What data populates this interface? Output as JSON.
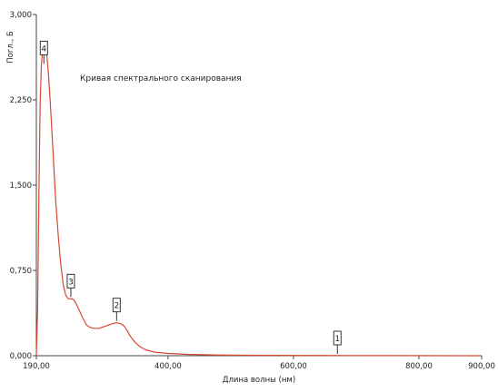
{
  "chart_data": {
    "type": "line",
    "title": "",
    "xlabel": "Длина волны (нм)",
    "ylabel": "Погл., Б",
    "annotation": "Кривая спектрального сканирования",
    "xlim": [
      190,
      900
    ],
    "ylim": [
      0,
      3
    ],
    "x_ticks": [
      {
        "value": 190,
        "label": "190,00"
      },
      {
        "value": 400,
        "label": "400,00"
      },
      {
        "value": 600,
        "label": "600,00"
      },
      {
        "value": 800,
        "label": "800,00"
      },
      {
        "value": 900,
        "label": "900,00"
      }
    ],
    "y_ticks": [
      {
        "value": 0,
        "label": "0,000"
      },
      {
        "value": 0.75,
        "label": "0,750"
      },
      {
        "value": 1.5,
        "label": "1,500"
      },
      {
        "value": 2.25,
        "label": "2,250"
      },
      {
        "value": 3,
        "label": "3,000"
      }
    ],
    "grid": false,
    "series": [
      {
        "color": "#d9472f",
        "points": [
          [
            190,
            0.0
          ],
          [
            192,
            0.4
          ],
          [
            194,
            1.4
          ],
          [
            196,
            2.2
          ],
          [
            198,
            2.55
          ],
          [
            200,
            2.7
          ],
          [
            202,
            2.76
          ],
          [
            204,
            2.74
          ],
          [
            206,
            2.68
          ],
          [
            209,
            2.5
          ],
          [
            213,
            2.15
          ],
          [
            217,
            1.75
          ],
          [
            221,
            1.35
          ],
          [
            225,
            1.05
          ],
          [
            229,
            0.8
          ],
          [
            233,
            0.62
          ],
          [
            237,
            0.53
          ],
          [
            241,
            0.5
          ],
          [
            246,
            0.5
          ],
          [
            250,
            0.49
          ],
          [
            255,
            0.44
          ],
          [
            260,
            0.38
          ],
          [
            265,
            0.32
          ],
          [
            270,
            0.27
          ],
          [
            275,
            0.25
          ],
          [
            282,
            0.24
          ],
          [
            290,
            0.24
          ],
          [
            300,
            0.26
          ],
          [
            310,
            0.28
          ],
          [
            318,
            0.29
          ],
          [
            325,
            0.28
          ],
          [
            330,
            0.26
          ],
          [
            335,
            0.22
          ],
          [
            340,
            0.17
          ],
          [
            347,
            0.12
          ],
          [
            355,
            0.08
          ],
          [
            365,
            0.05
          ],
          [
            380,
            0.03
          ],
          [
            400,
            0.02
          ],
          [
            430,
            0.012
          ],
          [
            480,
            0.006
          ],
          [
            550,
            0.003
          ],
          [
            650,
            0.002
          ],
          [
            750,
            0.001
          ],
          [
            900,
            0.0
          ]
        ]
      }
    ],
    "markers": [
      {
        "label": "4",
        "x": 202,
        "y": 2.55
      },
      {
        "label": "3",
        "x": 245,
        "y": 0.5
      },
      {
        "label": "2",
        "x": 318,
        "y": 0.29
      },
      {
        "label": "1",
        "x": 670,
        "y": 0.0
      }
    ],
    "colors": {
      "curve": "#d9472f",
      "axis": "#444444",
      "text": "#222222"
    }
  }
}
